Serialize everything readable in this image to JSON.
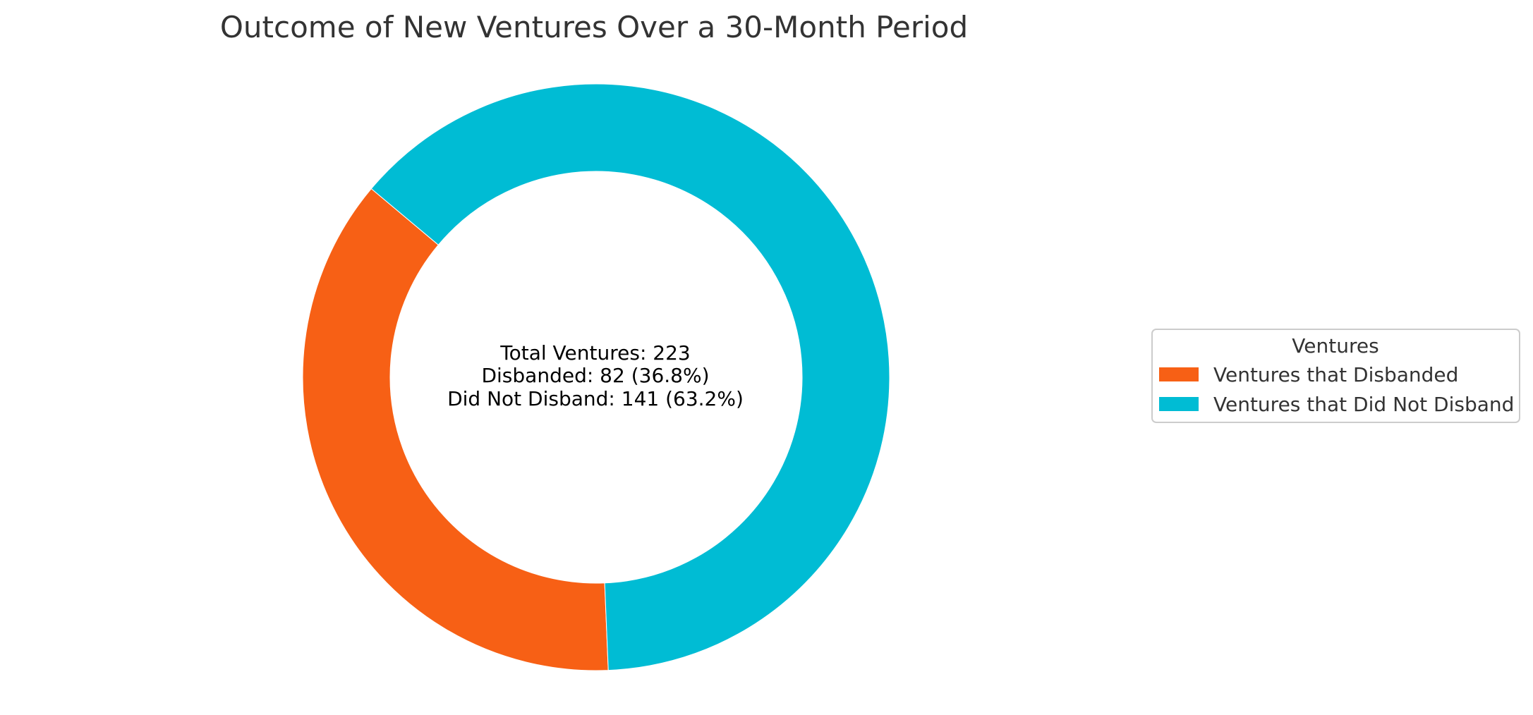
{
  "chart_data": {
    "type": "pie",
    "variant": "donut",
    "title": "Outcome of New Ventures Over a 30-Month Period",
    "slices": [
      {
        "label": "Ventures that Disbanded",
        "value": 82,
        "color": "#f76015"
      },
      {
        "label": "Ventures that Did Not Disband",
        "value": 141,
        "color": "#00bcd4"
      }
    ],
    "center_text": [
      "Total Ventures: 223",
      "Disbanded: 82 (36.8%)",
      "Did Not Disband: 141 (63.2%)"
    ],
    "legend": {
      "title": "Ventures",
      "placement": "right",
      "entries": [
        "Ventures that Disbanded",
        "Ventures that Did Not Disband"
      ]
    }
  }
}
